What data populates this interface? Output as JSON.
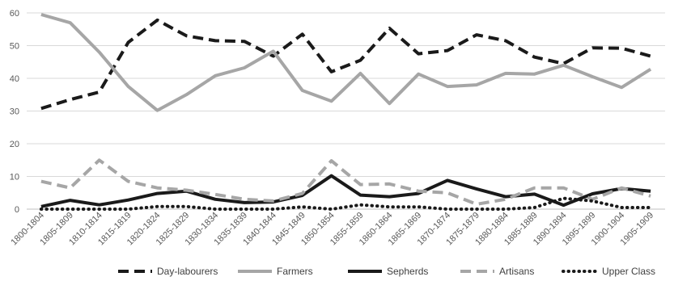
{
  "chart_data": {
    "type": "line",
    "title": "",
    "xlabel": "",
    "ylabel": "",
    "ylim": [
      0,
      60
    ],
    "yticks": [
      0,
      10,
      20,
      30,
      40,
      50,
      60
    ],
    "grid": "horizontal",
    "legend_position": "bottom",
    "categories": [
      "1800-1804",
      "1805-1809",
      "1810-1814",
      "1815-1819",
      "1820-1824",
      "1825-1829",
      "1830-1834",
      "1835-1839",
      "1840-1844",
      "1845-1849",
      "1850-1854",
      "1855-1859",
      "1860-1864",
      "1865-1869",
      "1870-1874",
      "1875-1879",
      "1880-1884",
      "1885-1889",
      "1890-1894",
      "1895-1899",
      "1900-1904",
      "1905-1909"
    ],
    "series": [
      {
        "name": "Day-labourers",
        "color": "#1a1a1a",
        "dash": "dash",
        "values": [
          30.8,
          33.5,
          35.8,
          51,
          57.8,
          53,
          51.5,
          51.3,
          46.8,
          53.5,
          42,
          45.5,
          55.3,
          47.5,
          48.5,
          53.3,
          51.5,
          46.5,
          44.5,
          49.3,
          49.2,
          46.8
        ]
      },
      {
        "name": "Farmers",
        "color": "#a6a6a6",
        "dash": "solid",
        "values": [
          59.5,
          57,
          48,
          37.5,
          30.2,
          35,
          40.8,
          43.2,
          48.3,
          36.3,
          33,
          41.5,
          32.3,
          41.3,
          37.5,
          38,
          41.5,
          41.3,
          44,
          40.5,
          37.2,
          42.8
        ]
      },
      {
        "name": "Sepherds",
        "color": "#1a1a1a",
        "dash": "solid",
        "values": [
          0.8,
          2.7,
          1.3,
          2.8,
          4.8,
          5.5,
          3,
          2,
          2.2,
          4.2,
          10.2,
          4.3,
          3.8,
          4.8,
          8.8,
          6.2,
          3.8,
          4.6,
          1.2,
          4.7,
          6.3,
          5.5
        ]
      },
      {
        "name": "Artisans",
        "color": "#a6a6a6",
        "dash": "dash",
        "values": [
          8.5,
          6.5,
          15,
          8.5,
          6.5,
          5.8,
          4.5,
          3,
          2.5,
          4.8,
          14.8,
          7.5,
          7.7,
          5.5,
          5,
          1.5,
          3,
          6.5,
          6.5,
          3,
          6.5,
          4
        ]
      },
      {
        "name": "Upper Class",
        "color": "#1a1a1a",
        "dash": "dot",
        "values": [
          0,
          0,
          0,
          0,
          0.8,
          0.8,
          0,
          0,
          0,
          0.7,
          0,
          1.3,
          0.7,
          0.7,
          0,
          0,
          0,
          0.5,
          3.3,
          2.5,
          0.5,
          0.5
        ]
      }
    ]
  }
}
